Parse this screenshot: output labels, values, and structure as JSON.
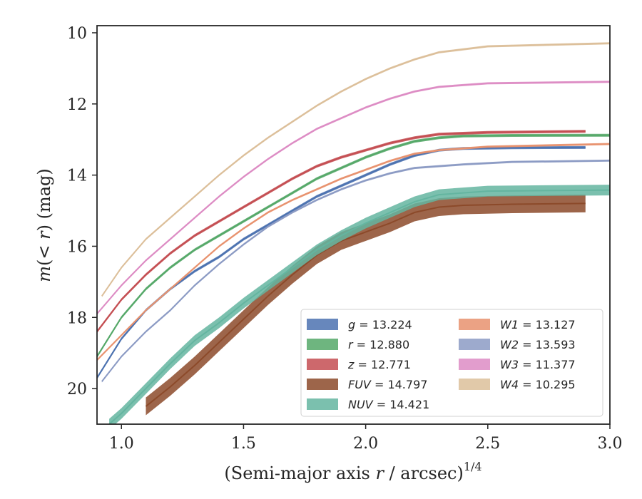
{
  "chart_data": {
    "type": "line",
    "xlabel": "(Semi-major axis r / arcsec)",
    "xlabel_parts": {
      "pre": "(Semi-major axis ",
      "var": "r",
      "post": " / arcsec)",
      "sup": "1/4"
    },
    "ylabel_parts": {
      "m": "m",
      "open": "(",
      "lt": "< ",
      "r": "r",
      "close": ") (mag)"
    },
    "xlim": [
      0.9,
      3.0
    ],
    "ylim": [
      21.0,
      9.8
    ],
    "y_inverted": true,
    "xticks": [
      1.0,
      1.5,
      2.0,
      2.5,
      3.0
    ],
    "xtick_labels": [
      "1.0",
      "1.5",
      "2.0",
      "2.5",
      "3.0"
    ],
    "yticks": [
      10,
      12,
      14,
      16,
      18,
      20
    ],
    "ytick_labels": [
      "10",
      "12",
      "14",
      "16",
      "18",
      "20"
    ],
    "grid": false,
    "legend_position": "lower-right",
    "series": [
      {
        "key": "g",
        "name": "g",
        "value_label": " = 13.224",
        "color": "#4c72b0",
        "points": [
          [
            0.9,
            19.7
          ],
          [
            1.0,
            18.6
          ],
          [
            1.1,
            17.8
          ],
          [
            1.2,
            17.2
          ],
          [
            1.3,
            16.7
          ],
          [
            1.4,
            16.3
          ],
          [
            1.5,
            15.8
          ],
          [
            1.6,
            15.4
          ],
          [
            1.7,
            15.0
          ],
          [
            1.8,
            14.6
          ],
          [
            1.9,
            14.3
          ],
          [
            2.0,
            14.0
          ],
          [
            2.1,
            13.7
          ],
          [
            2.2,
            13.45
          ],
          [
            2.3,
            13.3
          ],
          [
            2.4,
            13.25
          ],
          [
            2.6,
            13.23
          ],
          [
            2.9,
            13.224
          ]
        ],
        "band": 0.04
      },
      {
        "key": "r",
        "name": "r",
        "value_label": " = 12.880",
        "color": "#55a868",
        "points": [
          [
            0.9,
            19.1
          ],
          [
            1.0,
            18.0
          ],
          [
            1.1,
            17.2
          ],
          [
            1.2,
            16.6
          ],
          [
            1.3,
            16.1
          ],
          [
            1.4,
            15.7
          ],
          [
            1.5,
            15.3
          ],
          [
            1.6,
            14.9
          ],
          [
            1.7,
            14.5
          ],
          [
            1.8,
            14.1
          ],
          [
            1.9,
            13.8
          ],
          [
            2.0,
            13.5
          ],
          [
            2.1,
            13.25
          ],
          [
            2.2,
            13.05
          ],
          [
            2.3,
            12.95
          ],
          [
            2.4,
            12.9
          ],
          [
            2.6,
            12.885
          ],
          [
            3.0,
            12.88
          ]
        ],
        "band": 0.04
      },
      {
        "key": "z",
        "name": "z",
        "value_label": " = 12.771",
        "color": "#c44e52",
        "points": [
          [
            0.9,
            18.4
          ],
          [
            1.0,
            17.5
          ],
          [
            1.1,
            16.8
          ],
          [
            1.2,
            16.2
          ],
          [
            1.3,
            15.7
          ],
          [
            1.4,
            15.3
          ],
          [
            1.5,
            14.9
          ],
          [
            1.6,
            14.5
          ],
          [
            1.7,
            14.1
          ],
          [
            1.8,
            13.75
          ],
          [
            1.9,
            13.5
          ],
          [
            2.0,
            13.3
          ],
          [
            2.1,
            13.1
          ],
          [
            2.2,
            12.95
          ],
          [
            2.3,
            12.85
          ],
          [
            2.5,
            12.8
          ],
          [
            2.9,
            12.771
          ]
        ],
        "band": 0.04
      },
      {
        "key": "FUV",
        "name": "FUV",
        "value_label": " = 14.797",
        "color": "#8c4a2a",
        "points": [
          [
            1.1,
            20.5
          ],
          [
            1.2,
            19.95
          ],
          [
            1.3,
            19.35
          ],
          [
            1.4,
            18.7
          ],
          [
            1.5,
            18.05
          ],
          [
            1.6,
            17.4
          ],
          [
            1.7,
            16.8
          ],
          [
            1.8,
            16.25
          ],
          [
            1.9,
            15.85
          ],
          [
            2.0,
            15.6
          ],
          [
            2.1,
            15.35
          ],
          [
            2.2,
            15.05
          ],
          [
            2.3,
            14.9
          ],
          [
            2.4,
            14.85
          ],
          [
            2.6,
            14.82
          ],
          [
            2.9,
            14.797
          ]
        ],
        "band": 0.25
      },
      {
        "key": "NUV",
        "name": "NUV",
        "value_label": " = 14.421",
        "color": "#64b5a0",
        "points": [
          [
            0.95,
            21.0
          ],
          [
            1.0,
            20.7
          ],
          [
            1.1,
            20.0
          ],
          [
            1.2,
            19.3
          ],
          [
            1.3,
            18.65
          ],
          [
            1.4,
            18.15
          ],
          [
            1.5,
            17.6
          ],
          [
            1.6,
            17.1
          ],
          [
            1.7,
            16.6
          ],
          [
            1.8,
            16.1
          ],
          [
            1.9,
            15.7
          ],
          [
            2.0,
            15.35
          ],
          [
            2.1,
            15.05
          ],
          [
            2.2,
            14.75
          ],
          [
            2.3,
            14.55
          ],
          [
            2.5,
            14.45
          ],
          [
            3.0,
            14.421
          ]
        ],
        "band": 0.15
      },
      {
        "key": "W1",
        "name": "W1",
        "value_label": " = 13.127",
        "color": "#e8926e",
        "points": [
          [
            0.9,
            19.2
          ],
          [
            1.0,
            18.5
          ],
          [
            1.1,
            17.8
          ],
          [
            1.2,
            17.2
          ],
          [
            1.3,
            16.6
          ],
          [
            1.4,
            16.0
          ],
          [
            1.5,
            15.5
          ],
          [
            1.6,
            15.05
          ],
          [
            1.7,
            14.7
          ],
          [
            1.8,
            14.4
          ],
          [
            1.9,
            14.1
          ],
          [
            2.0,
            13.85
          ],
          [
            2.1,
            13.6
          ],
          [
            2.2,
            13.4
          ],
          [
            2.3,
            13.3
          ],
          [
            2.5,
            13.2
          ],
          [
            3.0,
            13.127
          ]
        ],
        "band": 0.03
      },
      {
        "key": "W2",
        "name": "W2",
        "value_label": " = 13.593",
        "color": "#8c9bc4",
        "points": [
          [
            0.92,
            19.8
          ],
          [
            1.0,
            19.1
          ],
          [
            1.1,
            18.4
          ],
          [
            1.2,
            17.8
          ],
          [
            1.3,
            17.1
          ],
          [
            1.4,
            16.5
          ],
          [
            1.5,
            15.95
          ],
          [
            1.6,
            15.45
          ],
          [
            1.7,
            15.05
          ],
          [
            1.8,
            14.7
          ],
          [
            1.9,
            14.4
          ],
          [
            2.0,
            14.15
          ],
          [
            2.1,
            13.95
          ],
          [
            2.2,
            13.8
          ],
          [
            2.4,
            13.7
          ],
          [
            2.6,
            13.63
          ],
          [
            3.0,
            13.593
          ]
        ],
        "band": 0.03
      },
      {
        "key": "W3",
        "name": "W3",
        "value_label": " = 11.377",
        "color": "#dd8cc4",
        "points": [
          [
            0.9,
            17.9
          ],
          [
            1.0,
            17.1
          ],
          [
            1.1,
            16.4
          ],
          [
            1.2,
            15.8
          ],
          [
            1.3,
            15.2
          ],
          [
            1.4,
            14.6
          ],
          [
            1.5,
            14.05
          ],
          [
            1.6,
            13.55
          ],
          [
            1.7,
            13.1
          ],
          [
            1.8,
            12.7
          ],
          [
            1.9,
            12.4
          ],
          [
            2.0,
            12.1
          ],
          [
            2.1,
            11.85
          ],
          [
            2.2,
            11.65
          ],
          [
            2.3,
            11.52
          ],
          [
            2.5,
            11.42
          ],
          [
            3.0,
            11.377
          ]
        ],
        "band": 0.03
      },
      {
        "key": "W4",
        "name": "W4",
        "value_label": " = 10.295",
        "color": "#dcbf9a",
        "points": [
          [
            0.92,
            17.4
          ],
          [
            1.0,
            16.6
          ],
          [
            1.1,
            15.8
          ],
          [
            1.2,
            15.2
          ],
          [
            1.3,
            14.6
          ],
          [
            1.4,
            14.0
          ],
          [
            1.5,
            13.45
          ],
          [
            1.6,
            12.95
          ],
          [
            1.7,
            12.5
          ],
          [
            1.8,
            12.05
          ],
          [
            1.9,
            11.65
          ],
          [
            2.0,
            11.3
          ],
          [
            2.1,
            11.0
          ],
          [
            2.2,
            10.75
          ],
          [
            2.3,
            10.55
          ],
          [
            2.5,
            10.38
          ],
          [
            3.0,
            10.295
          ]
        ],
        "band": 0.03
      }
    ]
  }
}
